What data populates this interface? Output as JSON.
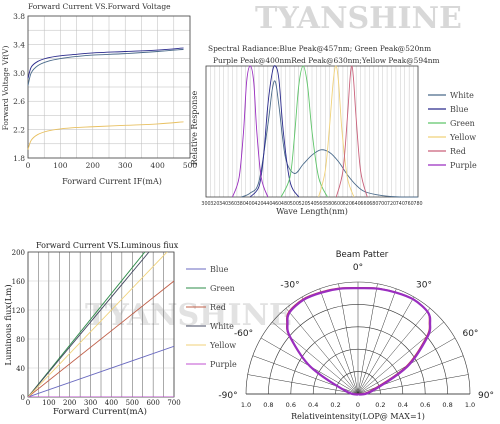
{
  "watermark": "TYANSHINE",
  "charts": {
    "voltage": {
      "title": "Forward Current VS.Forward Voltage",
      "ylabel": "Forward Voltage Vf(V)",
      "xlabel": "Forward Current IF(mA)",
      "xticks": [
        "0",
        "100",
        "200",
        "300",
        "400",
        "500"
      ],
      "yticks": [
        "1.8",
        "2.2",
        "2.6",
        "3.0",
        "3.4",
        "3.8"
      ]
    },
    "spectral": {
      "title1": "Spectral Radiance:Blue Peak@457nm; Green Peak@520nm",
      "title2": "Purple Peak@400nmRed Peak@630nm;Yellow Peak@594nm",
      "ylabel": "Relative Response",
      "xlabel": "Wave Length(nm)",
      "xticks": [
        "300",
        "320",
        "340",
        "360",
        "380",
        "400",
        "420",
        "440",
        "460",
        "480",
        "500",
        "520",
        "540",
        "560",
        "580",
        "600",
        "620",
        "640",
        "660",
        "680",
        "700",
        "720",
        "740",
        "760",
        "780"
      ],
      "legend": [
        "White",
        "Blue",
        "Green",
        "Yellow",
        "Red",
        "Purple"
      ]
    },
    "luminous": {
      "title": "Forward Current VS.Luminous fiux",
      "ylabel": "Luminous fiux(Lm)",
      "xlabel": "Forward Current(mA)",
      "xticks": [
        "0",
        "100",
        "200",
        "300",
        "400",
        "500",
        "600",
        "700"
      ],
      "yticks": [
        "0",
        "40",
        "80",
        "120",
        "160",
        "200"
      ],
      "legend": [
        "Blue",
        "Green",
        "Red",
        "White",
        "Yellow",
        "Purple"
      ]
    },
    "beam": {
      "title": "Beam Patter",
      "xlabel": "Relativeintensity(LOP@ MAX=1)",
      "angles": [
        "0°",
        "-30°",
        "30°",
        "-60°",
        "60°",
        "-90°",
        "90°"
      ],
      "rticks": [
        "1.0",
        "0.8",
        "0.6",
        "0.4",
        "0.2",
        "0",
        "0.2",
        "0.4",
        "0.6",
        "0.8",
        "1.0"
      ]
    }
  },
  "colors": {
    "White": "#4a6a8a",
    "Blue": "#2a2a8c",
    "Green": "#5fc56a",
    "Yellow": "#f0d27a",
    "Red": "#c9607a",
    "Purple": "#9a2ec0",
    "grid": "#999999",
    "axis": "#222222"
  },
  "chart_data": [
    {
      "type": "line",
      "title": "Forward Current VS.Forward Voltage",
      "xlabel": "Forward Current IF(mA)",
      "ylabel": "Forward Voltage Vf(V)",
      "xlim": [
        0,
        500
      ],
      "ylim": [
        1.8,
        3.8
      ],
      "grid": true,
      "series": [
        {
          "x": [
            0,
            10,
            30,
            60,
            100,
            150,
            200,
            300,
            400,
            480
          ],
          "y": [
            2.82,
            3.0,
            3.1,
            3.16,
            3.2,
            3.23,
            3.25,
            3.27,
            3.3,
            3.33
          ]
        },
        {
          "x": [
            0,
            10,
            30,
            60,
            100,
            150,
            200,
            300,
            400,
            480
          ],
          "y": [
            2.92,
            3.08,
            3.16,
            3.21,
            3.24,
            3.26,
            3.28,
            3.3,
            3.32,
            3.35
          ]
        },
        {
          "x": [
            0,
            10,
            30,
            60,
            100,
            150,
            200,
            300,
            400,
            480
          ],
          "y": [
            1.92,
            2.05,
            2.13,
            2.18,
            2.21,
            2.23,
            2.24,
            2.26,
            2.28,
            2.31
          ]
        }
      ]
    },
    {
      "type": "line",
      "title": "Spectral Radiance:Blue Peak@457nm; Green Peak@520nm Purple Peak@400nmRed Peak@630nm;Yellow Peak@594nm",
      "xlabel": "Wave Length(nm)",
      "ylabel": "Relative Response",
      "xlim": [
        300,
        780
      ],
      "ylim": [
        0,
        1
      ],
      "grid": true,
      "legend": "right",
      "series": [
        {
          "name": "White",
          "x": [
            380,
            400,
            420,
            440,
            450,
            457,
            465,
            480,
            500,
            520,
            540,
            560,
            580,
            600,
            620,
            640,
            660,
            700,
            740,
            780
          ],
          "y": [
            0,
            0.03,
            0.12,
            0.55,
            0.82,
            0.88,
            0.7,
            0.3,
            0.18,
            0.25,
            0.32,
            0.36,
            0.34,
            0.27,
            0.17,
            0.09,
            0.04,
            0.01,
            0,
            0
          ]
        },
        {
          "name": "Blue",
          "x": [
            400,
            420,
            430,
            440,
            450,
            457,
            465,
            475,
            490,
            510
          ],
          "y": [
            0,
            0.08,
            0.3,
            0.7,
            0.95,
            1.0,
            0.9,
            0.5,
            0.12,
            0
          ]
        },
        {
          "name": "Green",
          "x": [
            470,
            490,
            500,
            510,
            520,
            530,
            540,
            555,
            575
          ],
          "y": [
            0,
            0.15,
            0.45,
            0.85,
            1.0,
            0.85,
            0.5,
            0.15,
            0
          ]
        },
        {
          "name": "Yellow",
          "x": [
            555,
            570,
            580,
            588,
            594,
            600,
            608,
            620,
            635
          ],
          "y": [
            0,
            0.2,
            0.55,
            0.88,
            1.0,
            0.88,
            0.5,
            0.15,
            0
          ]
        },
        {
          "name": "Red",
          "x": [
            595,
            610,
            620,
            626,
            630,
            634,
            640,
            650,
            665
          ],
          "y": [
            0,
            0.2,
            0.6,
            0.9,
            1.0,
            0.9,
            0.6,
            0.2,
            0
          ]
        },
        {
          "name": "Purple",
          "x": [
            360,
            375,
            385,
            392,
            400,
            408,
            415,
            425,
            440
          ],
          "y": [
            0,
            0.15,
            0.5,
            0.88,
            1.0,
            0.88,
            0.5,
            0.15,
            0
          ]
        }
      ]
    },
    {
      "type": "line",
      "title": "Forward Current VS.Luminous fiux",
      "xlabel": "Forward Current(mA)",
      "ylabel": "Luminous fiux(Lm)",
      "xlim": [
        0,
        700
      ],
      "ylim": [
        0,
        200
      ],
      "grid": true,
      "legend": "right",
      "series": [
        {
          "name": "Blue",
          "x": [
            0,
            700
          ],
          "y": [
            0,
            70
          ]
        },
        {
          "name": "Green",
          "x": [
            0,
            560
          ],
          "y": [
            0,
            200
          ]
        },
        {
          "name": "Red",
          "x": [
            0,
            700
          ],
          "y": [
            0,
            160
          ]
        },
        {
          "name": "White",
          "x": [
            0,
            580
          ],
          "y": [
            0,
            200
          ]
        },
        {
          "name": "Yellow",
          "x": [
            0,
            700
          ],
          "y": [
            0,
            210
          ]
        },
        {
          "name": "Purple",
          "x": [
            0,
            700
          ],
          "y": [
            0,
            0
          ]
        }
      ]
    },
    {
      "type": "polar",
      "title": "Beam Patter",
      "xlabel": "Relativeintensity(LOP@ MAX=1)",
      "angle_range": [
        -90,
        90
      ],
      "r_range": [
        0,
        1
      ],
      "series": [
        {
          "theta": [
            -90,
            -75,
            -60,
            -50,
            -45,
            -40,
            -30,
            -20,
            -10,
            0,
            10,
            20,
            30,
            40,
            45,
            50,
            60,
            75,
            90
          ],
          "r": [
            0,
            0.12,
            0.5,
            0.8,
            0.9,
            0.96,
            0.98,
            0.97,
            0.96,
            0.95,
            0.96,
            0.97,
            0.98,
            0.96,
            0.9,
            0.8,
            0.5,
            0.12,
            0
          ]
        }
      ]
    }
  ]
}
